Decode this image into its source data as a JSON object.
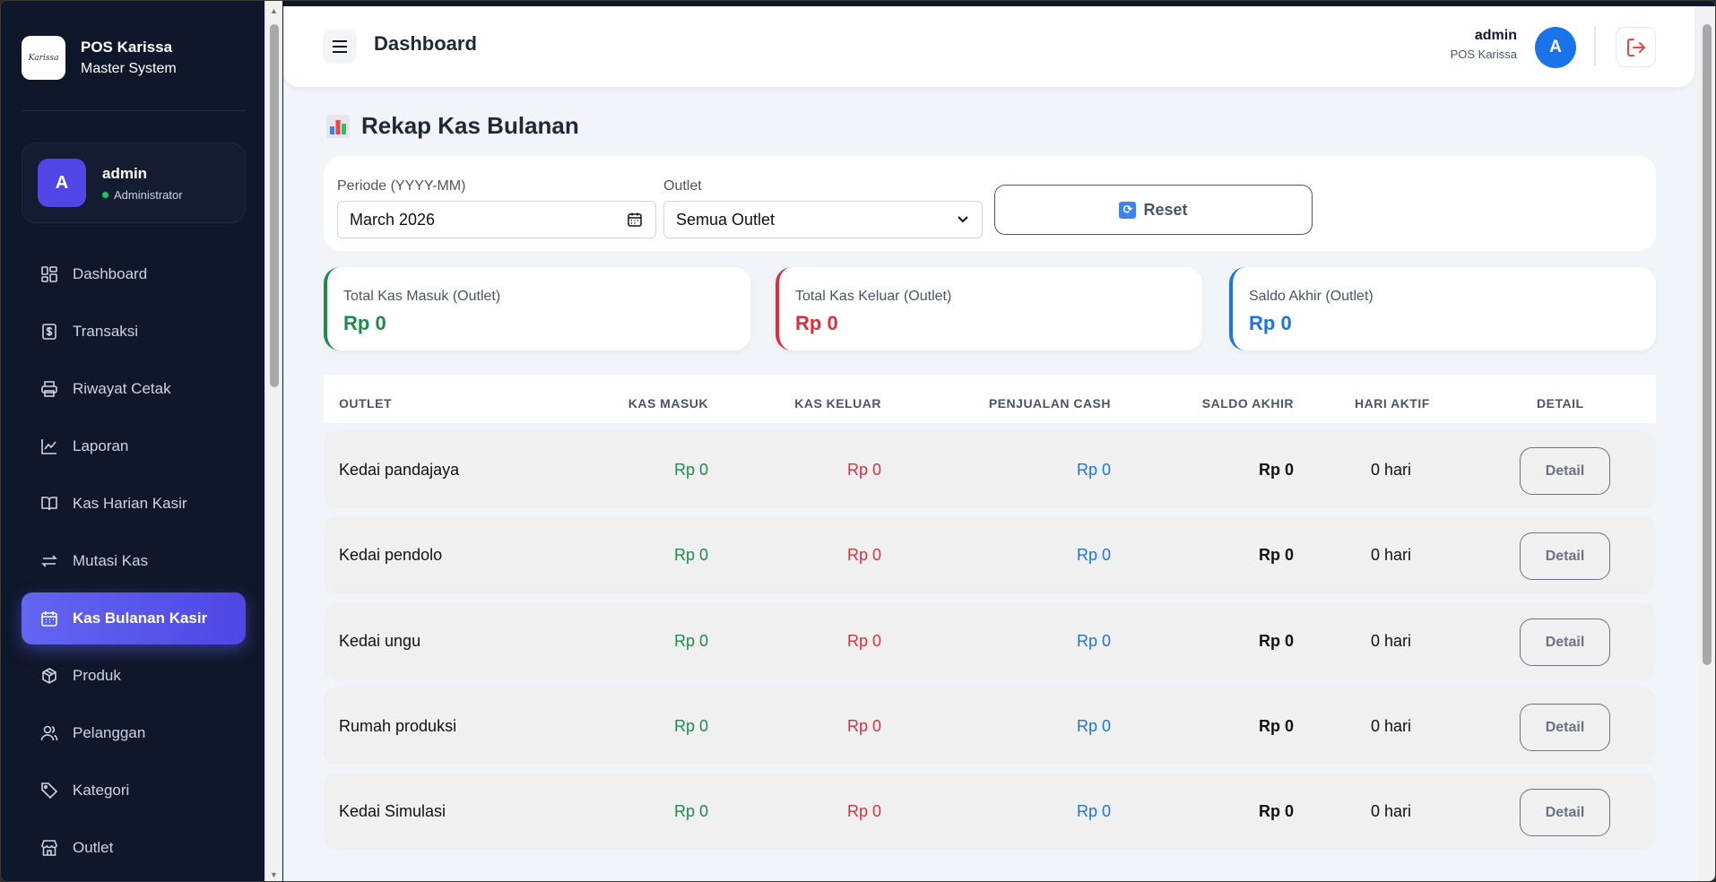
{
  "brand": {
    "logo_text": "Karissa",
    "name": "POS Karissa",
    "subtitle": "Master System"
  },
  "sidebar_user": {
    "initial": "A",
    "name": "admin",
    "role": "Administrator"
  },
  "nav": [
    {
      "label": "Dashboard",
      "icon": "grid-icon"
    },
    {
      "label": "Transaksi",
      "icon": "receipt-icon"
    },
    {
      "label": "Riwayat Cetak",
      "icon": "printer-icon"
    },
    {
      "label": "Laporan",
      "icon": "chart-line-icon"
    },
    {
      "label": "Kas Harian Kasir",
      "icon": "book-icon"
    },
    {
      "label": "Mutasi Kas",
      "icon": "swap-icon"
    },
    {
      "label": "Kas Bulanan Kasir",
      "icon": "calendar-icon",
      "active": true
    },
    {
      "label": "Produk",
      "icon": "box-icon"
    },
    {
      "label": "Pelanggan",
      "icon": "users-icon"
    },
    {
      "label": "Kategori",
      "icon": "tag-icon"
    },
    {
      "label": "Outlet",
      "icon": "store-icon"
    }
  ],
  "topbar": {
    "title": "Dashboard",
    "user_name": "admin",
    "user_sub": "POS Karissa",
    "avatar_initial": "A"
  },
  "section_title": "Rekap Kas Bulanan",
  "filters": {
    "periode_label": "Periode (YYYY-MM)",
    "periode_value": "March 2026",
    "outlet_label": "Outlet",
    "outlet_value": "Semua Outlet",
    "reset_label": "Reset"
  },
  "stats": [
    {
      "label": "Total Kas Masuk (Outlet)",
      "value": "Rp 0",
      "color": "#1e8a4c"
    },
    {
      "label": "Total Kas Keluar (Outlet)",
      "value": "Rp 0",
      "color": "#dc2f3d"
    },
    {
      "label": "Saldo Akhir (Outlet)",
      "value": "Rp 0",
      "color": "#1a73e8"
    }
  ],
  "table": {
    "headers": [
      "OUTLET",
      "KAS MASUK",
      "KAS KELUAR",
      "PENJUALAN CASH",
      "SALDO AKHIR",
      "HARI AKTIF",
      "DETAIL"
    ],
    "rows": [
      {
        "outlet": "Kedai pandajaya",
        "kas_masuk": "Rp 0",
        "kas_keluar": "Rp 0",
        "penjualan_cash": "Rp 0",
        "saldo_akhir": "Rp 0",
        "hari_aktif": "0 hari",
        "detail": "Detail"
      },
      {
        "outlet": "Kedai pendolo",
        "kas_masuk": "Rp 0",
        "kas_keluar": "Rp 0",
        "penjualan_cash": "Rp 0",
        "saldo_akhir": "Rp 0",
        "hari_aktif": "0 hari",
        "detail": "Detail"
      },
      {
        "outlet": "Kedai ungu",
        "kas_masuk": "Rp 0",
        "kas_keluar": "Rp 0",
        "penjualan_cash": "Rp 0",
        "saldo_akhir": "Rp 0",
        "hari_aktif": "0 hari",
        "detail": "Detail"
      },
      {
        "outlet": "Rumah produksi",
        "kas_masuk": "Rp 0",
        "kas_keluar": "Rp 0",
        "penjualan_cash": "Rp 0",
        "saldo_akhir": "Rp 0",
        "hari_aktif": "0 hari",
        "detail": "Detail"
      },
      {
        "outlet": "Kedai Simulasi",
        "kas_masuk": "Rp 0",
        "kas_keluar": "Rp 0",
        "penjualan_cash": "Rp 0",
        "saldo_akhir": "Rp 0",
        "hari_aktif": "0 hari",
        "detail": "Detail"
      }
    ]
  },
  "colors": {
    "green": "#1e8a4c",
    "red": "#dc2f3d",
    "blue": "#1a73e8",
    "accent": "#6366f1"
  }
}
